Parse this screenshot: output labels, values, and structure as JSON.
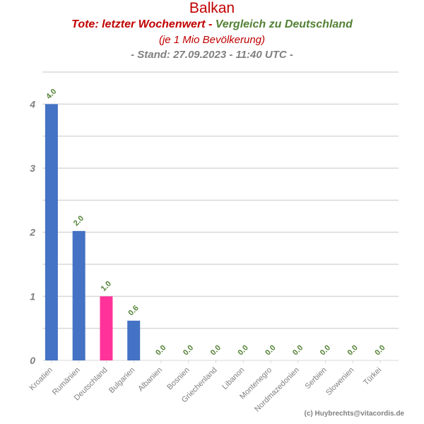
{
  "header": {
    "title": "Balkan",
    "subtitle_part1": "Tote: letzter Wochenwert - ",
    "subtitle_part2": "Vergleich zu Deutschland",
    "subtitle2": "(je 1 Mio Bevölkerung)",
    "stand": "- Stand: 27.09.2023 - 11:40 UTC -"
  },
  "footer": {
    "credit": "(c) Huybrechts@vitacordis.de"
  },
  "colors": {
    "bar_default": "#4472c4",
    "bar_highlight": "#ff3399",
    "data_label": "#538135",
    "axis_label": "#808080",
    "grid": "#d9d9d9"
  },
  "chart_data": {
    "type": "bar",
    "categories": [
      "Kroatien",
      "Rumänien",
      "Deutschland",
      "Bulgarien",
      "Albanien",
      "Bosnien",
      "Griechenland",
      "Libanon",
      "Montenegro",
      "Nordmazedonien",
      "Serbien",
      "Slowenien",
      "Türkei"
    ],
    "values": [
      4.0,
      2.02,
      1.0,
      0.62,
      0,
      0,
      0,
      0,
      0,
      0,
      0,
      0,
      0
    ],
    "data_labels": [
      "4.0",
      "2.0",
      "1.0",
      "0.6",
      "0.0",
      "0.0",
      "0.0",
      "0.0",
      "0.0",
      "0.0",
      "0.0",
      "0.0",
      "0.0"
    ],
    "highlight": "Deutschland",
    "ylim": [
      0,
      4.5
    ],
    "yticks": [
      "0",
      "1",
      "2",
      "3",
      "4"
    ],
    "ytick_values": [
      0,
      1,
      2,
      3,
      4
    ],
    "grid": true
  }
}
